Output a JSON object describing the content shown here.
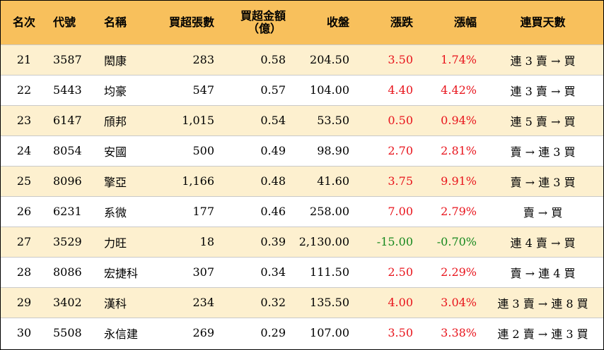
{
  "colors": {
    "header_bg": "#f8c05c",
    "alt_row_bg": "#fdf0cf",
    "up": "#e8141c",
    "down": "#17891e"
  },
  "headers": {
    "rank": "名次",
    "code": "代號",
    "name": "名稱",
    "net_buy_lots": "買超張數",
    "net_buy_amount_line1": "買超金額",
    "net_buy_amount_line2": "（億）",
    "close": "收盤",
    "change": "漲跌",
    "change_pct": "漲幅",
    "consecutive_days": "連買天數"
  },
  "rows": [
    {
      "rank": "21",
      "code": "3587",
      "name": "閎康",
      "lots": "283",
      "amount": "0.58",
      "close": "204.50",
      "change": "3.50",
      "pct": "1.74%",
      "days": "連 3 賣 → 買",
      "dir": "up"
    },
    {
      "rank": "22",
      "code": "5443",
      "name": "均豪",
      "lots": "547",
      "amount": "0.57",
      "close": "104.00",
      "change": "4.40",
      "pct": "4.42%",
      "days": "連 3 賣 → 買",
      "dir": "up"
    },
    {
      "rank": "23",
      "code": "6147",
      "name": "頎邦",
      "lots": "1,015",
      "amount": "0.54",
      "close": "53.50",
      "change": "0.50",
      "pct": "0.94%",
      "days": "連 5 賣 → 買",
      "dir": "up"
    },
    {
      "rank": "24",
      "code": "8054",
      "name": "安國",
      "lots": "500",
      "amount": "0.49",
      "close": "98.90",
      "change": "2.70",
      "pct": "2.81%",
      "days": "賣 → 連 3 買",
      "dir": "up"
    },
    {
      "rank": "25",
      "code": "8096",
      "name": "擎亞",
      "lots": "1,166",
      "amount": "0.48",
      "close": "41.60",
      "change": "3.75",
      "pct": "9.91%",
      "days": "賣 → 連 3 買",
      "dir": "up"
    },
    {
      "rank": "26",
      "code": "6231",
      "name": "系微",
      "lots": "177",
      "amount": "0.46",
      "close": "258.00",
      "change": "7.00",
      "pct": "2.79%",
      "days": "賣 → 買",
      "dir": "up"
    },
    {
      "rank": "27",
      "code": "3529",
      "name": "力旺",
      "lots": "18",
      "amount": "0.39",
      "close": "2,130.00",
      "change": "-15.00",
      "pct": "-0.70%",
      "days": "連 4 賣 → 買",
      "dir": "down"
    },
    {
      "rank": "28",
      "code": "8086",
      "name": "宏捷科",
      "lots": "307",
      "amount": "0.34",
      "close": "111.50",
      "change": "2.50",
      "pct": "2.29%",
      "days": "賣 → 連 4 買",
      "dir": "up"
    },
    {
      "rank": "29",
      "code": "3402",
      "name": "漢科",
      "lots": "234",
      "amount": "0.32",
      "close": "135.50",
      "change": "4.00",
      "pct": "3.04%",
      "days": "連 3 賣 → 連 8 買",
      "dir": "up"
    },
    {
      "rank": "30",
      "code": "5508",
      "name": "永信建",
      "lots": "269",
      "amount": "0.29",
      "close": "107.00",
      "change": "3.50",
      "pct": "3.38%",
      "days": "連 2 賣 → 連 3 買",
      "dir": "up"
    }
  ]
}
